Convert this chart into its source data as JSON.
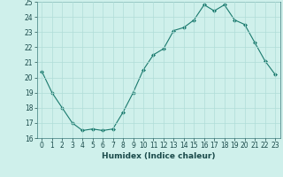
{
  "x": [
    0,
    1,
    2,
    3,
    4,
    5,
    6,
    7,
    8,
    9,
    10,
    11,
    12,
    13,
    14,
    15,
    16,
    17,
    18,
    19,
    20,
    21,
    22,
    23
  ],
  "y": [
    20.4,
    19.0,
    18.0,
    17.0,
    16.5,
    16.6,
    16.5,
    16.6,
    17.7,
    19.0,
    20.5,
    21.5,
    21.9,
    23.1,
    23.3,
    23.8,
    24.8,
    24.4,
    24.8,
    23.8,
    23.5,
    22.3,
    21.1,
    20.2
  ],
  "line_color": "#1a7a6e",
  "marker": "D",
  "marker_size": 2.0,
  "background_color": "#cff0eb",
  "grid_color": "#b0ddd8",
  "xlabel": "Humidex (Indice chaleur)",
  "xlim": [
    -0.5,
    23.5
  ],
  "ylim": [
    16,
    25
  ],
  "yticks": [
    16,
    17,
    18,
    19,
    20,
    21,
    22,
    23,
    24,
    25
  ],
  "xticks": [
    0,
    1,
    2,
    3,
    4,
    5,
    6,
    7,
    8,
    9,
    10,
    11,
    12,
    13,
    14,
    15,
    16,
    17,
    18,
    19,
    20,
    21,
    22,
    23
  ],
  "tick_fontsize": 5.5,
  "label_fontsize": 6.5,
  "line_width": 0.8
}
